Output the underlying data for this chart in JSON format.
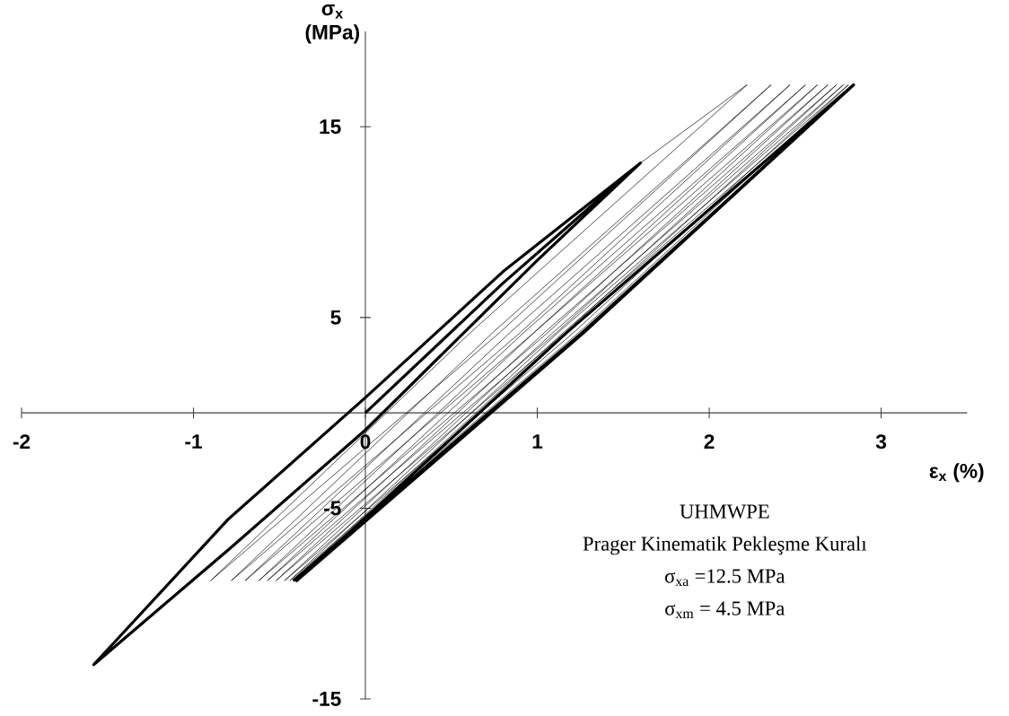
{
  "chart_data": {
    "type": "line",
    "xlabel": "ε$_{x}$ (%)",
    "ylabel": "σ$_{x}$ (MPa)",
    "marker": "none",
    "xlim": [
      -2,
      3.5
    ],
    "ylim": [
      -15,
      20
    ],
    "xticks": [
      -2,
      -1,
      0,
      1,
      2,
      3
    ],
    "yticks": [
      -15,
      -5,
      5,
      15
    ],
    "annotations": [
      "UHMWPE",
      "Prager Kinematik Pekleşme Kuralı",
      "σ$_{xa}$ =12.5 MPa",
      "σ$_{xm}$ = 4.5 MPa"
    ],
    "series": [
      {
        "color": "#000000",
        "x": [
          0,
          0.8,
          1.6,
          1.0,
          0,
          -0.8,
          -1.58,
          -0.8,
          0,
          0.8,
          1.6
        ],
        "values": [
          0,
          6.8,
          13.1,
          8.0,
          -0.9,
          -7.2,
          -13.2,
          -5.6,
          0.8,
          7.4,
          13.1
        ]
      },
      {
        "color": "#000000",
        "x": [
          1.6,
          2.22,
          0.61,
          -0.9,
          0.78,
          2.36,
          0.74,
          -0.78,
          0.9,
          2.47,
          0.84,
          -0.7,
          0.98,
          2.56,
          0.92,
          -0.62,
          1.06,
          2.63,
          0.98,
          -0.57,
          1.11,
          2.69,
          1.04,
          -0.52,
          1.16,
          2.74,
          1.09,
          -0.47,
          1.21,
          2.78,
          1.12,
          -0.44,
          1.24,
          2.81,
          1.15,
          -0.42
        ],
        "values": [
          13.1,
          17.2,
          4.2,
          -8.8,
          4.2,
          17.2,
          4.2,
          -8.8,
          4.2,
          17.2,
          4.2,
          -8.8,
          4.2,
          17.2,
          4.2,
          -8.8,
          4.2,
          17.2,
          4.2,
          -8.8,
          4.2,
          17.2,
          4.2,
          -8.8,
          4.2,
          17.2,
          4.2,
          -8.8,
          4.2,
          17.2,
          4.2,
          -8.8,
          4.2,
          17.2,
          4.2,
          -8.8
        ]
      },
      {
        "color": "#000000",
        "x": [
          -0.42,
          1.26,
          2.84,
          1.17,
          -0.4,
          1.27,
          2.84
        ],
        "values": [
          -8.8,
          4.2,
          17.2,
          4.2,
          -8.8,
          4.2,
          17.2
        ]
      }
    ]
  }
}
